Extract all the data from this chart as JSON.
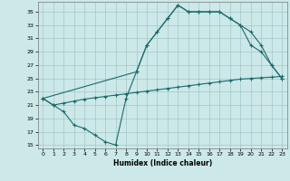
{
  "title": "",
  "xlabel": "Humidex (Indice chaleur)",
  "bg_color": "#cce8e8",
  "line_color": "#1a6b6b",
  "ylim": [
    14.5,
    36.5
  ],
  "xlim": [
    -0.5,
    23.5
  ],
  "yticks": [
    15,
    17,
    19,
    21,
    23,
    25,
    27,
    29,
    31,
    33,
    35
  ],
  "xticks": [
    0,
    1,
    2,
    3,
    4,
    5,
    6,
    7,
    8,
    9,
    10,
    11,
    12,
    13,
    14,
    15,
    16,
    17,
    18,
    19,
    20,
    21,
    22,
    23
  ],
  "line1_x": [
    0,
    1,
    2,
    3,
    4,
    5,
    6,
    7,
    8,
    9,
    10,
    11,
    12,
    13,
    14,
    15,
    16,
    17,
    18,
    19,
    20,
    21,
    22,
    23
  ],
  "line1_y": [
    22,
    21,
    20,
    18,
    17.5,
    16.5,
    15.5,
    15,
    22,
    26,
    30,
    32,
    34,
    36,
    35,
    35,
    35,
    35,
    34,
    33,
    30,
    29,
    27,
    25
  ],
  "line2_x": [
    0,
    9,
    10,
    11,
    12,
    13,
    14,
    15,
    16,
    17,
    18,
    19,
    20,
    21,
    22,
    23
  ],
  "line2_y": [
    22,
    26,
    30,
    32,
    34,
    36,
    35,
    35,
    35,
    35,
    34,
    33,
    32,
    30,
    27,
    25
  ],
  "line3_x": [
    0,
    1,
    2,
    3,
    4,
    5,
    6,
    7,
    8,
    9,
    10,
    11,
    12,
    13,
    14,
    15,
    16,
    17,
    18,
    19,
    20,
    21,
    22,
    23
  ],
  "line3_y": [
    22,
    21,
    21.3,
    21.6,
    21.9,
    22.1,
    22.3,
    22.5,
    22.7,
    22.9,
    23.1,
    23.3,
    23.5,
    23.7,
    23.9,
    24.1,
    24.3,
    24.5,
    24.7,
    24.9,
    25.0,
    25.1,
    25.2,
    25.3
  ]
}
